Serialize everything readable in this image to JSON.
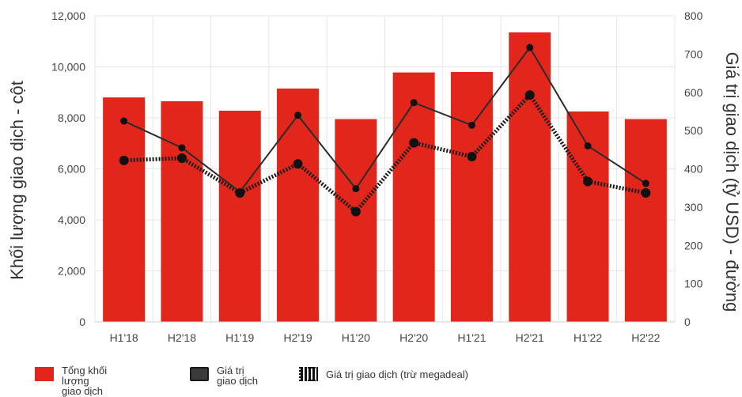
{
  "chart_data": {
    "type": "bar",
    "categories": [
      "H1'18",
      "H2'18",
      "H1'19",
      "H2'19",
      "H1'20",
      "H2'20",
      "H1'21",
      "H2'21",
      "H1'22",
      "H2'22"
    ],
    "bar_series": {
      "name": "Tổng khối lượng giao dịch",
      "values": [
        8800,
        8650,
        8280,
        9150,
        7950,
        9780,
        9800,
        11350,
        8250,
        7950
      ]
    },
    "line_series": [
      {
        "name": "Giá trị giao dịch",
        "style": "solid",
        "values": [
          525,
          455,
          340,
          540,
          348,
          573,
          514,
          717,
          460,
          362
        ]
      },
      {
        "name": "Giá trị giao dịch (trừ megadeal)",
        "style": "dotted",
        "values": [
          422,
          428,
          337,
          413,
          288,
          468,
          432,
          593,
          367,
          337
        ]
      }
    ],
    "ylabel": "Khối lượng giao dịch - cột",
    "y2label": "Giá trị giao dịch (tỷ USD) - đường",
    "ylim": [
      0,
      12000
    ],
    "y2lim": [
      0,
      800
    ],
    "yticks": [
      "0",
      "2,000",
      "4,000",
      "6,000",
      "8,000",
      "10,000",
      "12,000"
    ],
    "y2ticks": [
      "0",
      "100",
      "200",
      "300",
      "400",
      "500",
      "600",
      "700",
      "800"
    ],
    "grid": true,
    "legend_position": "bottom-left",
    "colors": {
      "bar": "#e2261c",
      "line": "#2b2b2b",
      "dotted": "#1a1a1a",
      "grid": "#e6e6e6"
    }
  },
  "legend": {
    "bar_label_line1": "Tổng khối lượng",
    "bar_label_line2": "giao dịch",
    "line_label_line1": "Giá trị",
    "line_label_line2": "giao dịch",
    "dotted_label": "Giá trị giao dịch (trừ megadeal)"
  }
}
